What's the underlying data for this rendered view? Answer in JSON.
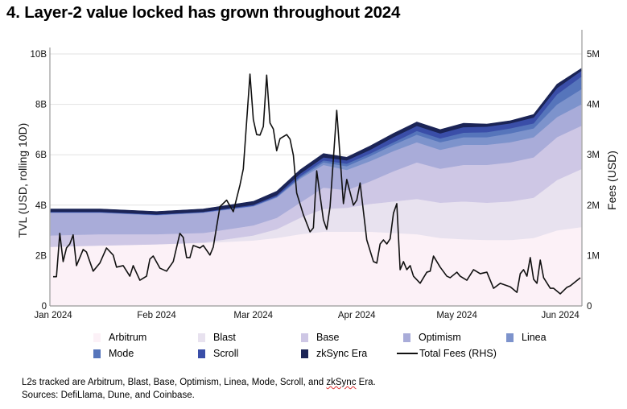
{
  "title": "4. Layer-2 value locked has grown throughout 2024",
  "footnote": {
    "line1_prefix": "L2s tracked are Arbitrum, Blast, Base, Optimism, Linea, Mode, Scroll, and ",
    "line1_flagged": "zkSync",
    "line1_suffix": " Era.",
    "line2": "Sources: DefiLlama, Dune, and Coinbase."
  },
  "chart_data": {
    "type": "area",
    "stacked": true,
    "title": "4. Layer-2 value locked has grown throughout 2024",
    "ylabel": "TVL (USD, rolling 10D)",
    "y2label": "Fees (USD)",
    "ylim": [
      0,
      10.5
    ],
    "y_ticks": [
      {
        "v": 0,
        "label": "0"
      },
      {
        "v": 2,
        "label": "2B"
      },
      {
        "v": 4,
        "label": "4B"
      },
      {
        "v": 6,
        "label": "6B"
      },
      {
        "v": 8,
        "label": "8B"
      },
      {
        "v": 10,
        "label": "10B"
      }
    ],
    "y2lim": [
      0,
      5.25
    ],
    "y2_ticks": [
      {
        "v": 0,
        "label": "0"
      },
      {
        "v": 1,
        "label": "1M"
      },
      {
        "v": 2,
        "label": "2M"
      },
      {
        "v": 3,
        "label": "3M"
      },
      {
        "v": 4,
        "label": "4M"
      },
      {
        "v": 5,
        "label": "5M"
      }
    ],
    "xlim": [
      "2024-01-01",
      "2024-06-07"
    ],
    "x_ticks": [
      {
        "v": "2024-01-01",
        "label": "Jan 2024"
      },
      {
        "v": "2024-02-01",
        "label": "Feb 2024"
      },
      {
        "v": "2024-03-01",
        "label": "Mar 2024"
      },
      {
        "v": "2024-04-01",
        "label": "Apr 2024"
      },
      {
        "v": "2024-05-01",
        "label": "May 2024"
      },
      {
        "v": "2024-06-01",
        "label": "Jun 2024"
      }
    ],
    "grid": "horizontal",
    "legend_position": "bottom",
    "x": [
      "2024-01-01",
      "2024-01-15",
      "2024-02-01",
      "2024-02-15",
      "2024-03-01",
      "2024-03-08",
      "2024-03-15",
      "2024-03-22",
      "2024-03-29",
      "2024-04-05",
      "2024-04-12",
      "2024-04-19",
      "2024-04-26",
      "2024-05-03",
      "2024-05-10",
      "2024-05-17",
      "2024-05-24",
      "2024-05-31",
      "2024-06-07"
    ],
    "series": [
      {
        "name": "Arbitrum",
        "color": "#fcf1f7",
        "values": [
          2.35,
          2.4,
          2.45,
          2.5,
          2.6,
          2.7,
          2.85,
          2.95,
          2.95,
          2.95,
          2.9,
          2.85,
          2.7,
          2.65,
          2.62,
          2.62,
          2.7,
          3.0,
          3.13
        ]
      },
      {
        "name": "Blast",
        "color": "#e8e2ef",
        "values": [
          0,
          0,
          0,
          0.02,
          0.2,
          0.35,
          0.65,
          0.9,
          0.95,
          1.1,
          1.25,
          1.4,
          1.4,
          1.5,
          1.48,
          1.53,
          1.6,
          2.0,
          2.3
        ]
      },
      {
        "name": "Base",
        "color": "#cec7e5",
        "values": [
          0.45,
          0.45,
          0.4,
          0.38,
          0.4,
          0.45,
          0.6,
          0.85,
          0.7,
          0.9,
          1.2,
          1.45,
          1.35,
          1.45,
          1.5,
          1.55,
          1.6,
          1.7,
          1.72
        ]
      },
      {
        "name": "Optimism",
        "color": "#a9acd9",
        "values": [
          0.9,
          0.85,
          0.75,
          0.8,
          0.75,
          0.8,
          0.95,
          0.9,
          0.8,
          0.8,
          0.8,
          0.8,
          0.75,
          0.8,
          0.8,
          0.8,
          0.8,
          0.8,
          0.85
        ]
      },
      {
        "name": "Linea",
        "color": "#7d93cc",
        "values": [
          0.02,
          0.02,
          0.02,
          0.02,
          0.03,
          0.03,
          0.05,
          0.1,
          0.15,
          0.2,
          0.25,
          0.3,
          0.3,
          0.3,
          0.3,
          0.35,
          0.35,
          0.5,
          0.6
        ]
      },
      {
        "name": "Mode",
        "color": "#5675bb",
        "values": [
          0,
          0,
          0,
          0,
          0,
          0.02,
          0.05,
          0.08,
          0.1,
          0.1,
          0.1,
          0.15,
          0.15,
          0.18,
          0.2,
          0.2,
          0.2,
          0.4,
          0.5
        ]
      },
      {
        "name": "Scroll",
        "color": "#3a4ea8",
        "values": [
          0.02,
          0.02,
          0.02,
          0.02,
          0.04,
          0.05,
          0.1,
          0.12,
          0.13,
          0.15,
          0.2,
          0.2,
          0.2,
          0.22,
          0.22,
          0.2,
          0.23,
          0.25,
          0.23
        ]
      },
      {
        "name": "zkSync Era",
        "color": "#1b2456",
        "values": [
          0.11,
          0.11,
          0.11,
          0.11,
          0.13,
          0.15,
          0.15,
          0.15,
          0.12,
          0.15,
          0.15,
          0.15,
          0.15,
          0.15,
          0.1,
          0.1,
          0.12,
          0.15,
          0.09
        ]
      }
    ],
    "units": {
      "tvl": "USD billions",
      "fees": "USD millions"
    },
    "line_series": {
      "name": "Total Fees (RHS)",
      "axis": "right",
      "color": "#111111",
      "x": [
        "2024-01-01",
        "2024-01-02",
        "2024-01-03",
        "2024-01-04",
        "2024-01-05",
        "2024-01-06",
        "2024-01-07",
        "2024-01-08",
        "2024-01-10",
        "2024-01-11",
        "2024-01-13",
        "2024-01-15",
        "2024-01-17",
        "2024-01-19",
        "2024-01-20",
        "2024-01-22",
        "2024-01-24",
        "2024-01-25",
        "2024-01-27",
        "2024-01-29",
        "2024-01-30",
        "2024-01-31",
        "2024-02-02",
        "2024-02-04",
        "2024-02-06",
        "2024-02-08",
        "2024-02-09",
        "2024-02-10",
        "2024-02-11",
        "2024-02-12",
        "2024-02-14",
        "2024-02-15",
        "2024-02-17",
        "2024-02-18",
        "2024-02-20",
        "2024-02-22",
        "2024-02-24",
        "2024-02-26",
        "2024-02-27",
        "2024-02-29",
        "2024-03-01",
        "2024-03-02",
        "2024-03-03",
        "2024-03-04",
        "2024-03-05",
        "2024-03-06",
        "2024-03-07",
        "2024-03-08",
        "2024-03-09",
        "2024-03-11",
        "2024-03-12",
        "2024-03-13",
        "2024-03-14",
        "2024-03-16",
        "2024-03-18",
        "2024-03-19",
        "2024-03-20",
        "2024-03-22",
        "2024-03-23",
        "2024-03-24",
        "2024-03-26",
        "2024-03-28",
        "2024-03-29",
        "2024-03-31",
        "2024-04-01",
        "2024-04-02",
        "2024-04-04",
        "2024-04-06",
        "2024-04-07",
        "2024-04-08",
        "2024-04-09",
        "2024-04-10",
        "2024-04-11",
        "2024-04-12",
        "2024-04-13",
        "2024-04-14",
        "2024-04-15",
        "2024-04-16",
        "2024-04-17",
        "2024-04-18",
        "2024-04-20",
        "2024-04-22",
        "2024-04-23",
        "2024-04-24",
        "2024-04-26",
        "2024-04-28",
        "2024-04-29",
        "2024-05-01",
        "2024-05-02",
        "2024-05-04",
        "2024-05-06",
        "2024-05-08",
        "2024-05-10",
        "2024-05-12",
        "2024-05-13",
        "2024-05-14",
        "2024-05-17",
        "2024-05-19",
        "2024-05-20",
        "2024-05-21",
        "2024-05-22",
        "2024-05-23",
        "2024-05-24",
        "2024-05-25",
        "2024-05-26",
        "2024-05-27",
        "2024-05-29",
        "2024-05-30",
        "2024-06-01",
        "2024-06-03",
        "2024-06-04",
        "2024-06-07"
      ],
      "values": [
        0.58,
        0.58,
        1.44,
        0.88,
        1.15,
        1.23,
        1.41,
        0.8,
        1.12,
        1.07,
        0.69,
        0.85,
        1.15,
        1.01,
        0.77,
        0.8,
        0.59,
        0.8,
        0.51,
        0.59,
        0.93,
        0.99,
        0.75,
        0.69,
        0.88,
        1.44,
        1.36,
        0.96,
        0.96,
        1.2,
        1.15,
        1.2,
        1.01,
        1.17,
        1.97,
        2.1,
        1.87,
        2.4,
        2.72,
        4.6,
        3.7,
        3.4,
        3.39,
        3.56,
        4.58,
        3.63,
        3.51,
        3.08,
        3.32,
        3.4,
        3.31,
        2.99,
        2.24,
        1.81,
        1.47,
        1.55,
        2.68,
        1.71,
        1.52,
        1.97,
        3.88,
        2.03,
        2.51,
        2.0,
        2.1,
        2.44,
        1.31,
        0.88,
        0.85,
        1.23,
        1.31,
        1.23,
        1.33,
        1.84,
        2.03,
        0.72,
        0.88,
        0.72,
        0.8,
        0.59,
        0.45,
        0.67,
        0.69,
        0.99,
        0.77,
        0.59,
        0.56,
        0.67,
        0.59,
        0.51,
        0.72,
        0.64,
        0.67,
        0.35,
        0.4,
        0.45,
        0.38,
        0.27,
        0.64,
        0.72,
        0.59,
        0.96,
        0.53,
        0.45,
        0.91,
        0.56,
        0.35,
        0.35,
        0.24,
        0.37,
        0.4,
        0.56
      ]
    }
  }
}
